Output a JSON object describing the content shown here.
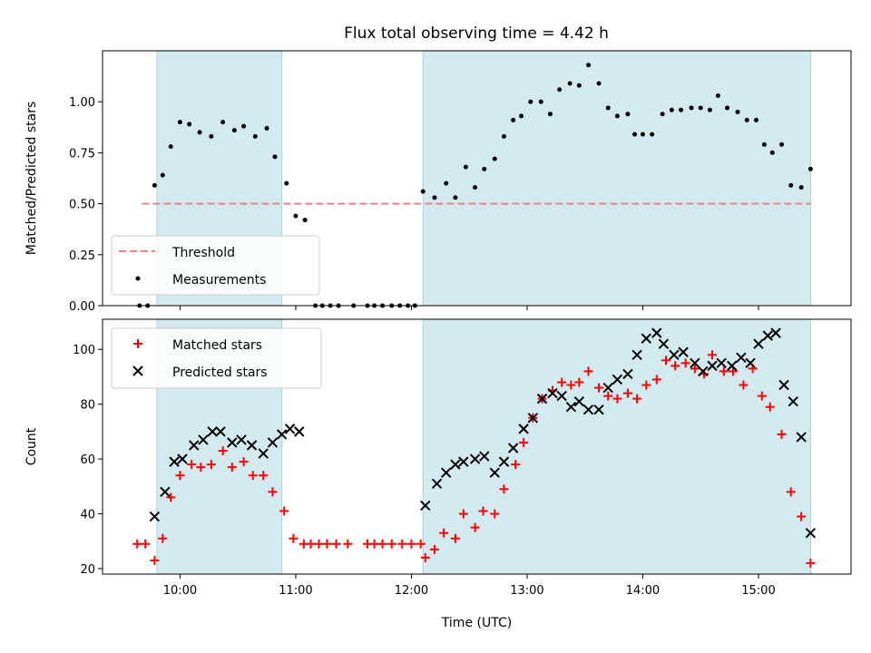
{
  "chart_data": {
    "title": "Flux total observing time = 4.42 h",
    "xlabel": "Time (UTC)",
    "x_unit": "hours UTC",
    "xlim": [
      9.33,
      15.8
    ],
    "x_ticks": [
      {
        "value": 10,
        "label": "10:00"
      },
      {
        "value": 11,
        "label": "11:00"
      },
      {
        "value": 12,
        "label": "12:00"
      },
      {
        "value": 13,
        "label": "13:00"
      },
      {
        "value": 14,
        "label": "14:00"
      },
      {
        "value": 15,
        "label": "15:00"
      }
    ],
    "shaded_intervals": [
      [
        9.8,
        10.88
      ],
      [
        12.1,
        15.45
      ]
    ],
    "shade_color": "#d3eaf0",
    "colors": {
      "threshold": "#f08080",
      "measurements": "#000000",
      "matched": "#ff0000",
      "predicted": "#000000"
    },
    "top_panel": {
      "type": "scatter",
      "ylabel": "Matched/Predicted stars",
      "ylim": [
        0,
        1.25
      ],
      "y_ticks": [
        0.0,
        0.25,
        0.5,
        0.75,
        1.0
      ],
      "y_tick_labels": [
        "0.00",
        "0.25",
        "0.50",
        "0.75",
        "1.00"
      ],
      "legend_position": "lower-left",
      "threshold": {
        "name": "Threshold",
        "value": 0.5,
        "x_range": [
          9.67,
          15.45
        ]
      },
      "series": [
        {
          "name": "Measurements",
          "points": [
            [
              9.65,
              0
            ],
            [
              9.72,
              0
            ],
            [
              9.78,
              0.59
            ],
            [
              9.85,
              0.64
            ],
            [
              9.92,
              0.78
            ],
            [
              10.0,
              0.9
            ],
            [
              10.08,
              0.89
            ],
            [
              10.17,
              0.85
            ],
            [
              10.27,
              0.83
            ],
            [
              10.37,
              0.9
            ],
            [
              10.47,
              0.86
            ],
            [
              10.55,
              0.88
            ],
            [
              10.65,
              0.83
            ],
            [
              10.75,
              0.87
            ],
            [
              10.82,
              0.73
            ],
            [
              10.92,
              0.6
            ],
            [
              11.0,
              0.44
            ],
            [
              11.08,
              0.42
            ],
            [
              11.17,
              0
            ],
            [
              11.23,
              0
            ],
            [
              11.3,
              0
            ],
            [
              11.37,
              0
            ],
            [
              11.5,
              0
            ],
            [
              11.62,
              0
            ],
            [
              11.68,
              0
            ],
            [
              11.75,
              0
            ],
            [
              11.83,
              0
            ],
            [
              11.9,
              0
            ],
            [
              11.97,
              0
            ],
            [
              12.03,
              0
            ],
            [
              12.1,
              0.56
            ],
            [
              12.2,
              0.53
            ],
            [
              12.3,
              0.6
            ],
            [
              12.38,
              0.53
            ],
            [
              12.47,
              0.68
            ],
            [
              12.55,
              0.58
            ],
            [
              12.63,
              0.67
            ],
            [
              12.72,
              0.72
            ],
            [
              12.8,
              0.83
            ],
            [
              12.88,
              0.91
            ],
            [
              12.95,
              0.93
            ],
            [
              13.03,
              1.0
            ],
            [
              13.12,
              1.0
            ],
            [
              13.2,
              0.94
            ],
            [
              13.28,
              1.06
            ],
            [
              13.37,
              1.09
            ],
            [
              13.45,
              1.08
            ],
            [
              13.53,
              1.18
            ],
            [
              13.62,
              1.09
            ],
            [
              13.7,
              0.97
            ],
            [
              13.78,
              0.93
            ],
            [
              13.87,
              0.94
            ],
            [
              13.93,
              0.84
            ],
            [
              14.0,
              0.84
            ],
            [
              14.08,
              0.84
            ],
            [
              14.17,
              0.94
            ],
            [
              14.25,
              0.96
            ],
            [
              14.33,
              0.96
            ],
            [
              14.42,
              0.97
            ],
            [
              14.5,
              0.97
            ],
            [
              14.58,
              0.96
            ],
            [
              14.65,
              1.03
            ],
            [
              14.73,
              0.97
            ],
            [
              14.82,
              0.95
            ],
            [
              14.9,
              0.91
            ],
            [
              14.98,
              0.91
            ],
            [
              15.05,
              0.79
            ],
            [
              15.12,
              0.75
            ],
            [
              15.2,
              0.79
            ],
            [
              15.28,
              0.59
            ],
            [
              15.37,
              0.58
            ],
            [
              15.45,
              0.67
            ]
          ]
        }
      ]
    },
    "bottom_panel": {
      "type": "scatter",
      "ylabel": "Count",
      "ylim": [
        18,
        111
      ],
      "y_ticks": [
        20,
        40,
        60,
        80,
        100
      ],
      "y_tick_labels": [
        "20",
        "40",
        "60",
        "80",
        "100"
      ],
      "legend_position": "upper-left",
      "series": [
        {
          "name": "Matched stars",
          "marker": "+",
          "points": [
            [
              9.63,
              29
            ],
            [
              9.7,
              29
            ],
            [
              9.78,
              23
            ],
            [
              9.85,
              31
            ],
            [
              9.92,
              46
            ],
            [
              10.0,
              54
            ],
            [
              10.1,
              58
            ],
            [
              10.18,
              57
            ],
            [
              10.27,
              58
            ],
            [
              10.37,
              63
            ],
            [
              10.45,
              57
            ],
            [
              10.55,
              59
            ],
            [
              10.63,
              54
            ],
            [
              10.72,
              54
            ],
            [
              10.8,
              48
            ],
            [
              10.9,
              41
            ],
            [
              10.98,
              31
            ],
            [
              11.07,
              29
            ],
            [
              11.13,
              29
            ],
            [
              11.2,
              29
            ],
            [
              11.27,
              29
            ],
            [
              11.35,
              29
            ],
            [
              11.45,
              29
            ],
            [
              11.62,
              29
            ],
            [
              11.68,
              29
            ],
            [
              11.75,
              29
            ],
            [
              11.83,
              29
            ],
            [
              11.92,
              29
            ],
            [
              12.0,
              29
            ],
            [
              12.08,
              29
            ],
            [
              12.12,
              24
            ],
            [
              12.2,
              27
            ],
            [
              12.28,
              33
            ],
            [
              12.38,
              31
            ],
            [
              12.45,
              40
            ],
            [
              12.55,
              35
            ],
            [
              12.62,
              41
            ],
            [
              12.72,
              40
            ],
            [
              12.8,
              49
            ],
            [
              12.9,
              58
            ],
            [
              12.97,
              66
            ],
            [
              13.05,
              75
            ],
            [
              13.13,
              82
            ],
            [
              13.22,
              85
            ],
            [
              13.3,
              88
            ],
            [
              13.38,
              87
            ],
            [
              13.45,
              88
            ],
            [
              13.53,
              92
            ],
            [
              13.62,
              86
            ],
            [
              13.7,
              83
            ],
            [
              13.78,
              82
            ],
            [
              13.87,
              84
            ],
            [
              13.95,
              82
            ],
            [
              14.03,
              87
            ],
            [
              14.12,
              89
            ],
            [
              14.2,
              96
            ],
            [
              14.28,
              94
            ],
            [
              14.37,
              95
            ],
            [
              14.45,
              93
            ],
            [
              14.53,
              91
            ],
            [
              14.6,
              98
            ],
            [
              14.7,
              92
            ],
            [
              14.78,
              92
            ],
            [
              14.87,
              87
            ],
            [
              14.95,
              93
            ],
            [
              15.03,
              83
            ],
            [
              15.1,
              79
            ],
            [
              15.2,
              69
            ],
            [
              15.28,
              48
            ],
            [
              15.37,
              39
            ],
            [
              15.45,
              22
            ]
          ]
        },
        {
          "name": "Predicted stars",
          "marker": "x",
          "points": [
            [
              9.78,
              39
            ],
            [
              9.87,
              48
            ],
            [
              9.95,
              59
            ],
            [
              10.02,
              60
            ],
            [
              10.12,
              65
            ],
            [
              10.2,
              67
            ],
            [
              10.28,
              70
            ],
            [
              10.35,
              70
            ],
            [
              10.45,
              66
            ],
            [
              10.53,
              67
            ],
            [
              10.62,
              65
            ],
            [
              10.72,
              62
            ],
            [
              10.8,
              66
            ],
            [
              10.88,
              69
            ],
            [
              10.95,
              71
            ],
            [
              11.03,
              70
            ],
            [
              12.12,
              43
            ],
            [
              12.22,
              51
            ],
            [
              12.3,
              55
            ],
            [
              12.38,
              58
            ],
            [
              12.45,
              59
            ],
            [
              12.55,
              60
            ],
            [
              12.63,
              61
            ],
            [
              12.72,
              55
            ],
            [
              12.8,
              59
            ],
            [
              12.88,
              64
            ],
            [
              12.97,
              71
            ],
            [
              13.05,
              75
            ],
            [
              13.13,
              82
            ],
            [
              13.22,
              84
            ],
            [
              13.3,
              83
            ],
            [
              13.38,
              79
            ],
            [
              13.45,
              81
            ],
            [
              13.53,
              78
            ],
            [
              13.62,
              78
            ],
            [
              13.7,
              86
            ],
            [
              13.78,
              89
            ],
            [
              13.87,
              91
            ],
            [
              13.95,
              98
            ],
            [
              14.03,
              104
            ],
            [
              14.12,
              106
            ],
            [
              14.18,
              102
            ],
            [
              14.27,
              98
            ],
            [
              14.35,
              99
            ],
            [
              14.45,
              95
            ],
            [
              14.52,
              92
            ],
            [
              14.6,
              94
            ],
            [
              14.68,
              95
            ],
            [
              14.77,
              94
            ],
            [
              14.85,
              97
            ],
            [
              14.93,
              95
            ],
            [
              15.0,
              102
            ],
            [
              15.08,
              105
            ],
            [
              15.15,
              106
            ],
            [
              15.22,
              87
            ],
            [
              15.3,
              81
            ],
            [
              15.37,
              68
            ],
            [
              15.45,
              33
            ]
          ]
        }
      ]
    }
  }
}
